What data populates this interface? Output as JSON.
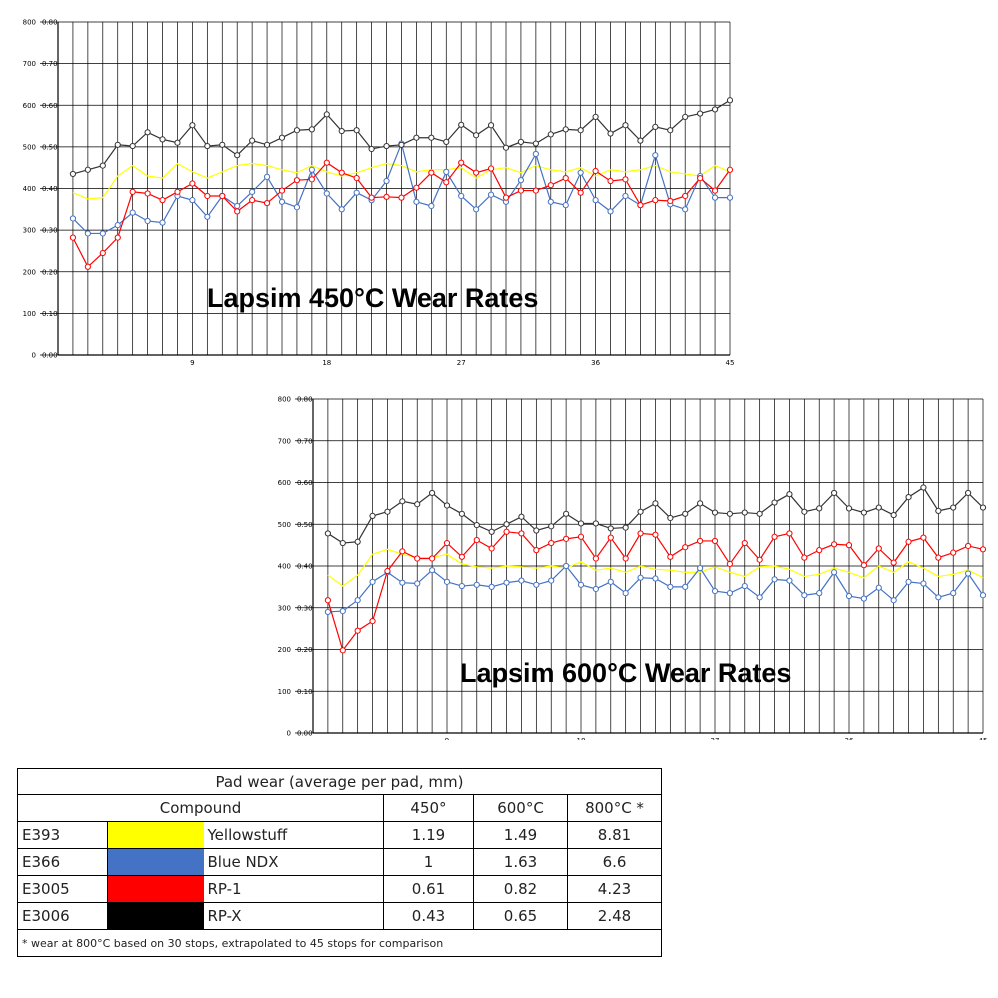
{
  "charts_text": {
    "chart1_title": "Lapsim 450°C Wear Rates",
    "chart2_title": "Lapsim 600°C Wear Rates",
    "y_ticks_left": [
      "0",
      "100",
      "200",
      "300",
      "400",
      "500",
      "600",
      "700",
      "800"
    ],
    "y_ticks_inner": [
      "0.00",
      "0.10",
      "0.20",
      "0.30",
      "0.40",
      "0.50",
      "0.60",
      "0.70",
      "0.80"
    ],
    "x_ticks": [
      "9",
      "18",
      "27",
      "36",
      "45"
    ]
  },
  "colors": {
    "Yellowstuff": "#ffff00",
    "Blue NDX": "#4472c4",
    "RP-1": "#ff0000",
    "RP-X": "#000000"
  },
  "chart_data": [
    {
      "type": "line",
      "title": "Lapsim 450°C Wear Rates",
      "xlabel": "",
      "ylabel": "",
      "x": [
        1,
        2,
        3,
        4,
        5,
        6,
        7,
        8,
        9,
        10,
        11,
        12,
        13,
        14,
        15,
        16,
        17,
        18,
        19,
        20,
        21,
        22,
        23,
        24,
        25,
        26,
        27,
        28,
        29,
        30,
        31,
        32,
        33,
        34,
        35,
        36,
        37,
        38,
        39,
        40,
        41,
        42,
        43,
        44,
        45
      ],
      "xlim": [
        0,
        45
      ],
      "ylim": [
        0,
        800
      ],
      "grid": true,
      "series": [
        {
          "name": "Yellowstuff",
          "color": "#ffff00",
          "markers": false,
          "values": [
            390,
            375,
            378,
            430,
            455,
            430,
            425,
            460,
            440,
            425,
            440,
            455,
            460,
            455,
            445,
            438,
            455,
            440,
            430,
            438,
            450,
            460,
            455,
            440,
            445,
            445,
            450,
            425,
            445,
            450,
            438,
            455,
            445,
            440,
            450,
            430,
            445,
            440,
            445,
            455,
            440,
            435,
            430,
            455,
            440
          ]
        },
        {
          "name": "Blue NDX",
          "color": "#4472c4",
          "markers": true,
          "values": [
            328,
            292,
            292,
            312,
            342,
            322,
            318,
            382,
            372,
            332,
            382,
            358,
            392,
            428,
            368,
            355,
            445,
            388,
            350,
            390,
            372,
            418,
            508,
            368,
            358,
            440,
            382,
            350,
            385,
            368,
            420,
            483,
            368,
            360,
            438,
            372,
            345,
            382,
            360,
            480,
            362,
            350,
            430,
            378,
            378
          ]
        },
        {
          "name": "RP-1",
          "color": "#ff0000",
          "markers": true,
          "values": [
            282,
            212,
            245,
            282,
            392,
            388,
            372,
            392,
            412,
            382,
            382,
            345,
            372,
            365,
            395,
            420,
            422,
            462,
            438,
            425,
            378,
            380,
            378,
            402,
            438,
            415,
            462,
            438,
            448,
            378,
            395,
            395,
            408,
            425,
            390,
            442,
            418,
            422,
            360,
            372,
            370,
            382,
            425,
            395,
            445
          ]
        },
        {
          "name": "RP-X",
          "color": "#333333",
          "markers": true,
          "values": [
            435,
            445,
            455,
            505,
            502,
            535,
            518,
            510,
            552,
            502,
            505,
            480,
            515,
            505,
            522,
            540,
            542,
            578,
            538,
            540,
            495,
            502,
            505,
            522,
            522,
            512,
            553,
            528,
            552,
            498,
            512,
            508,
            530,
            542,
            540,
            572,
            532,
            552,
            515,
            548,
            540,
            572,
            580,
            590,
            612
          ]
        }
      ]
    },
    {
      "type": "line",
      "title": "Lapsim 600°C Wear Rates",
      "xlabel": "",
      "ylabel": "",
      "x": [
        1,
        2,
        3,
        4,
        5,
        6,
        7,
        8,
        9,
        10,
        11,
        12,
        13,
        14,
        15,
        16,
        17,
        18,
        19,
        20,
        21,
        22,
        23,
        24,
        25,
        26,
        27,
        28,
        29,
        30,
        31,
        32,
        33,
        34,
        35,
        36,
        37,
        38,
        39,
        40,
        41,
        42,
        43,
        44,
        45
      ],
      "xlim": [
        0,
        45
      ],
      "ylim": [
        0,
        800
      ],
      "grid": true,
      "series": [
        {
          "name": "Yellowstuff",
          "color": "#ffff00",
          "markers": false,
          "values": [
            378,
            352,
            378,
            428,
            440,
            428,
            420,
            420,
            428,
            405,
            398,
            395,
            400,
            398,
            395,
            400,
            395,
            410,
            390,
            395,
            385,
            400,
            392,
            390,
            385,
            385,
            398,
            385,
            375,
            398,
            400,
            392,
            375,
            380,
            395,
            385,
            372,
            400,
            385,
            410,
            395,
            375,
            380,
            390,
            372
          ]
        },
        {
          "name": "Blue NDX",
          "color": "#4472c4",
          "markers": true,
          "values": [
            290,
            292,
            318,
            362,
            385,
            360,
            358,
            390,
            362,
            352,
            355,
            350,
            360,
            365,
            355,
            365,
            400,
            355,
            345,
            362,
            335,
            372,
            370,
            350,
            350,
            395,
            340,
            335,
            352,
            325,
            368,
            365,
            330,
            335,
            385,
            328,
            322,
            348,
            318,
            362,
            358,
            325,
            335,
            382,
            330
          ]
        },
        {
          "name": "RP-1",
          "color": "#ff0000",
          "markers": true,
          "values": [
            318,
            198,
            245,
            268,
            388,
            435,
            418,
            418,
            455,
            422,
            462,
            442,
            482,
            478,
            438,
            455,
            465,
            470,
            418,
            468,
            418,
            478,
            475,
            422,
            445,
            460,
            460,
            405,
            455,
            415,
            470,
            478,
            420,
            438,
            452,
            450,
            402,
            442,
            408,
            458,
            468,
            420,
            432,
            448,
            440
          ]
        },
        {
          "name": "RP-X",
          "color": "#333333",
          "markers": true,
          "values": [
            478,
            455,
            458,
            520,
            530,
            555,
            548,
            575,
            545,
            525,
            498,
            482,
            500,
            518,
            485,
            495,
            525,
            502,
            502,
            490,
            492,
            530,
            550,
            515,
            525,
            550,
            528,
            525,
            528,
            525,
            552,
            572,
            530,
            538,
            575,
            538,
            528,
            540,
            522,
            565,
            588,
            532,
            540,
            575,
            540
          ]
        }
      ]
    }
  ],
  "table": {
    "caption": "Pad wear (average per pad, mm)",
    "headers": {
      "compound": "Compound",
      "c450": "450°",
      "c600": "600°C",
      "c800": "800°C *"
    },
    "rows": [
      {
        "id": "E393",
        "color": "#ffff00",
        "name": "Yellowstuff",
        "v450": "1.19",
        "v600": "1.49",
        "v800": "8.81"
      },
      {
        "id": "E366",
        "color": "#4472c4",
        "name": "Blue NDX",
        "v450": "1",
        "v600": "1.63",
        "v800": "6.6"
      },
      {
        "id": "E3005",
        "color": "#ff0000",
        "name": "RP-1",
        "v450": "0.61",
        "v600": "0.82",
        "v800": "4.23"
      },
      {
        "id": "E3006",
        "color": "#000000",
        "name": "RP-X",
        "v450": "0.43",
        "v600": "0.65",
        "v800": "2.48"
      }
    ],
    "footnote": "* wear at 800°C based on 30 stops, extrapolated to 45 stops for comparison"
  }
}
